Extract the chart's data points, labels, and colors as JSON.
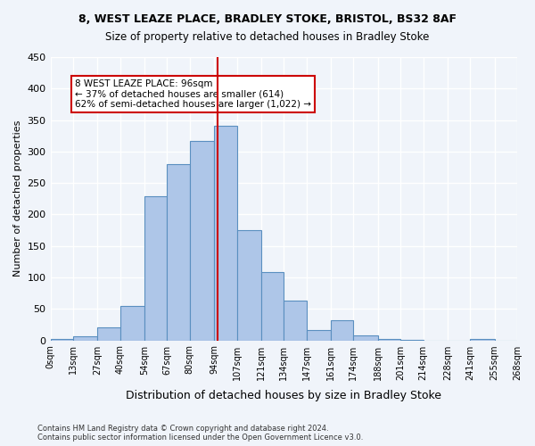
{
  "title_line1": "8, WEST LEAZE PLACE, BRADLEY STOKE, BRISTOL, BS32 8AF",
  "title_line2": "Size of property relative to detached houses in Bradley Stoke",
  "xlabel": "Distribution of detached houses by size in Bradley Stoke",
  "ylabel": "Number of detached properties",
  "footnote": "Contains HM Land Registry data © Crown copyright and database right 2024.\nContains public sector information licensed under the Open Government Licence v3.0.",
  "bin_labels": [
    "0sqm",
    "13sqm",
    "27sqm",
    "40sqm",
    "54sqm",
    "67sqm",
    "80sqm",
    "94sqm",
    "107sqm",
    "121sqm",
    "134sqm",
    "147sqm",
    "161sqm",
    "174sqm",
    "188sqm",
    "201sqm",
    "214sqm",
    "228sqm",
    "241sqm",
    "255sqm",
    "268sqm"
  ],
  "bin_edges": [
    0,
    13,
    27,
    40,
    54,
    67,
    80,
    94,
    107,
    121,
    134,
    147,
    161,
    174,
    188,
    201,
    214,
    228,
    241,
    255,
    268
  ],
  "bar_heights": [
    2,
    6,
    20,
    54,
    229,
    280,
    317,
    341,
    175,
    109,
    63,
    17,
    32,
    8,
    2,
    1,
    0,
    0,
    2,
    0
  ],
  "bar_color": "#aec6e8",
  "bar_edgecolor": "#5a8fc0",
  "property_value": 96,
  "vline_color": "#cc0000",
  "annotation_text": "8 WEST LEAZE PLACE: 96sqm\n← 37% of detached houses are smaller (614)\n62% of semi-detached houses are larger (1,022) →",
  "annotation_box_edgecolor": "#cc0000",
  "annotation_box_facecolor": "#ffffff",
  "ylim": [
    0,
    450
  ],
  "yticks": [
    0,
    50,
    100,
    150,
    200,
    250,
    300,
    350,
    400,
    450
  ],
  "background_color": "#f0f4fa",
  "grid_color": "#ffffff",
  "fig_width": 6.0,
  "fig_height": 5.0
}
